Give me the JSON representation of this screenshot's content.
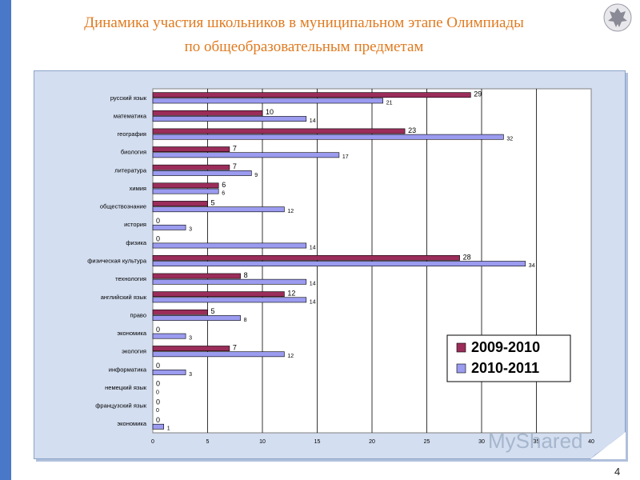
{
  "title_line1": "Динамика участия школьников в муниципальном этапе Олимпиады",
  "title_line2": "по общеобразовательным предметам",
  "page_number": "4",
  "watermark_text": "MyShared",
  "colors": {
    "series1": "#9b2d5a",
    "series2": "#9b9bf0",
    "title": "#e07a1f",
    "panel": "#d3def0",
    "bar_accent": "#4a78c8"
  },
  "chart_data": {
    "type": "bar",
    "orientation": "horizontal",
    "categories": [
      "русский язык",
      "математика",
      "география",
      "биология",
      "литература",
      "химия",
      "обществознание",
      "история",
      "физика",
      "физическая культура",
      "технология",
      "английский язык",
      "право",
      "экономика",
      "экология",
      "информатика",
      "немецкий язык",
      "французский язык",
      "экономика"
    ],
    "series": [
      {
        "name": "2009-2010",
        "values": [
          29,
          10,
          23,
          7,
          7,
          6,
          5,
          0,
          0,
          28,
          8,
          12,
          5,
          0,
          7,
          0,
          0,
          0,
          0
        ]
      },
      {
        "name": "2010-2011",
        "values": [
          21,
          14,
          32,
          17,
          9,
          6,
          12,
          3,
          14,
          34,
          14,
          14,
          8,
          3,
          12,
          3,
          0,
          0,
          1
        ]
      }
    ],
    "xlim": [
      0,
      40
    ],
    "xticks": [
      "0",
      "5",
      "10",
      "15",
      "20",
      "25",
      "30",
      "35",
      "40"
    ],
    "grid": true,
    "legend_position": "bottom-right"
  }
}
